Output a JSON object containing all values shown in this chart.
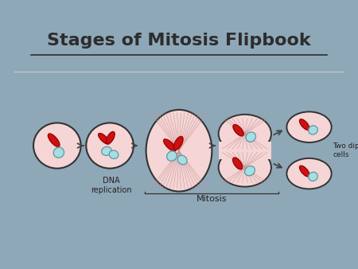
{
  "title": "Stages of Mitosis Flipbook",
  "title_fontsize": 16,
  "title_color": "#2d2d2d",
  "title_weight": "bold",
  "background_slide": "#8fa8b8",
  "background_white": "#ffffff",
  "label_dna": "DNA\nreplication",
  "label_mitosis": "Mitosis",
  "label_two_diploid": "Two diploid\ncells",
  "label_fontsize": 7,
  "red_color": "#cc1111",
  "light_blue": "#aadde0",
  "pink_fill": "#f5d5d5",
  "dark_outline": "#333333",
  "arrow_color": "#444444",
  "spindle_color": "#d4a0a0"
}
